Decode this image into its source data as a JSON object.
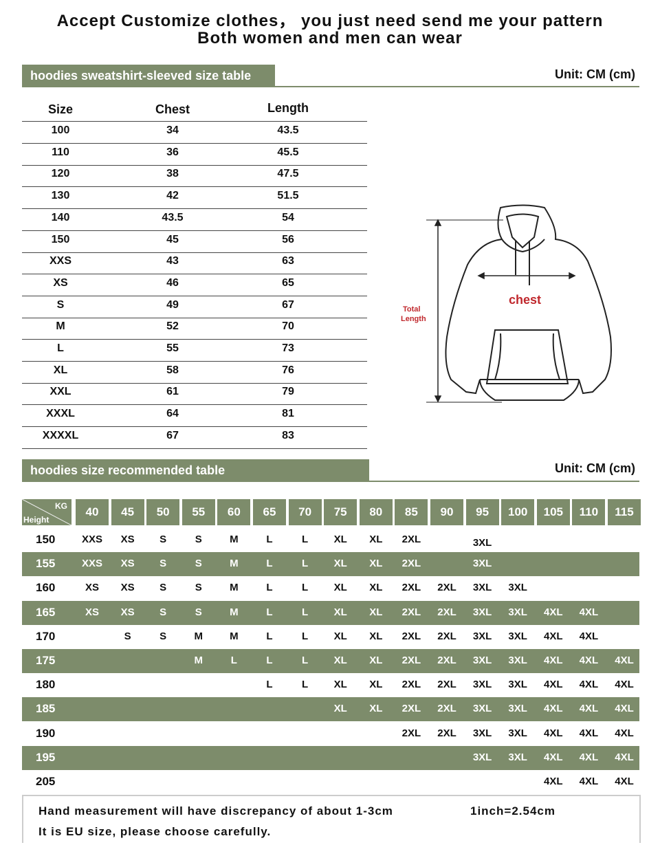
{
  "header": {
    "line1": "Accept Customize clothes， you just need send me your pattern",
    "line2": "Both women and men can wear"
  },
  "size_table": {
    "title": "hoodies sweatshirt-sleeved size table",
    "unit": "Unit: CM (cm)",
    "columns": [
      "Size",
      "Chest",
      "Length"
    ],
    "rows": [
      [
        "100",
        "34",
        "43.5"
      ],
      [
        "110",
        "36",
        "45.5"
      ],
      [
        "120",
        "38",
        "47.5"
      ],
      [
        "130",
        "42",
        "51.5"
      ],
      [
        "140",
        "43.5",
        "54"
      ],
      [
        "150",
        "45",
        "56"
      ],
      [
        "XXS",
        "43",
        "63"
      ],
      [
        "XS",
        "46",
        "65"
      ],
      [
        "S",
        "49",
        "67"
      ],
      [
        "M",
        "52",
        "70"
      ],
      [
        "L",
        "55",
        "73"
      ],
      [
        "XL",
        "58",
        "76"
      ],
      [
        "XXL",
        "61",
        "79"
      ],
      [
        "XXXL",
        "64",
        "81"
      ],
      [
        "XXXXL",
        "67",
        "83"
      ]
    ]
  },
  "diagram": {
    "chest_label": "chest",
    "length_label_1": "Total",
    "length_label_2": "Length"
  },
  "rec_table": {
    "title": "hoodies size recommended table",
    "unit": "Unit: CM (cm)",
    "corner_kg": "KG",
    "corner_height": "Height",
    "weights": [
      "40",
      "45",
      "50",
      "55",
      "60",
      "65",
      "70",
      "75",
      "80",
      "85",
      "90",
      "95",
      "100",
      "105",
      "110",
      "115"
    ],
    "rows": [
      {
        "height": "150",
        "sizes": [
          "XXS",
          "XS",
          "S",
          "S",
          "M",
          "L",
          "L",
          "XL",
          "XL",
          "2XL",
          "",
          "3XL",
          "",
          "",
          "",
          ""
        ]
      },
      {
        "height": "155",
        "sizes": [
          "XXS",
          "XS",
          "S",
          "S",
          "M",
          "L",
          "L",
          "XL",
          "XL",
          "2XL",
          "",
          "3XL",
          "",
          "",
          "",
          ""
        ]
      },
      {
        "height": "160",
        "sizes": [
          "XS",
          "XS",
          "S",
          "S",
          "M",
          "L",
          "L",
          "XL",
          "XL",
          "2XL",
          "2XL",
          "3XL",
          "3XL",
          "",
          "",
          ""
        ]
      },
      {
        "height": "165",
        "sizes": [
          "XS",
          "XS",
          "S",
          "S",
          "M",
          "L",
          "L",
          "XL",
          "XL",
          "2XL",
          "2XL",
          "3XL",
          "3XL",
          "4XL",
          "4XL",
          ""
        ]
      },
      {
        "height": "170",
        "sizes": [
          "",
          "S",
          "S",
          "M",
          "M",
          "L",
          "L",
          "XL",
          "XL",
          "2XL",
          "2XL",
          "3XL",
          "3XL",
          "4XL",
          "4XL",
          ""
        ]
      },
      {
        "height": "175",
        "sizes": [
          "",
          "",
          "",
          "M",
          "L",
          "L",
          "L",
          "XL",
          "XL",
          "2XL",
          "2XL",
          "3XL",
          "3XL",
          "4XL",
          "4XL",
          "4XL"
        ]
      },
      {
        "height": "180",
        "sizes": [
          "",
          "",
          "",
          "",
          "",
          "L",
          "L",
          "XL",
          "XL",
          "2XL",
          "2XL",
          "3XL",
          "3XL",
          "4XL",
          "4XL",
          "4XL"
        ]
      },
      {
        "height": "185",
        "sizes": [
          "",
          "",
          "",
          "",
          "",
          "",
          "",
          "XL",
          "XL",
          "2XL",
          "2XL",
          "3XL",
          "3XL",
          "4XL",
          "4XL",
          "4XL"
        ]
      },
      {
        "height": "190",
        "sizes": [
          "",
          "",
          "",
          "",
          "",
          "",
          "",
          "",
          "",
          "2XL",
          "2XL",
          "3XL",
          "3XL",
          "4XL",
          "4XL",
          "4XL"
        ]
      },
      {
        "height": "195",
        "sizes": [
          "",
          "",
          "",
          "",
          "",
          "",
          "",
          "",
          "",
          "",
          "",
          "3XL",
          "3XL",
          "4XL",
          "4XL",
          "4XL"
        ]
      },
      {
        "height": "205",
        "sizes": [
          "",
          "",
          "",
          "",
          "",
          "",
          "",
          "",
          "",
          "",
          "",
          "",
          "",
          "4XL",
          "4XL",
          "4XL"
        ]
      }
    ]
  },
  "note": {
    "line1": "Hand measurement will have discrepancy of about 1-3cm",
    "conversion": "1inch=2.54cm",
    "line2": "It is EU size, please choose carefully."
  },
  "colors": {
    "accent": "#7d8c6b",
    "chest_label": "#c0282d"
  }
}
